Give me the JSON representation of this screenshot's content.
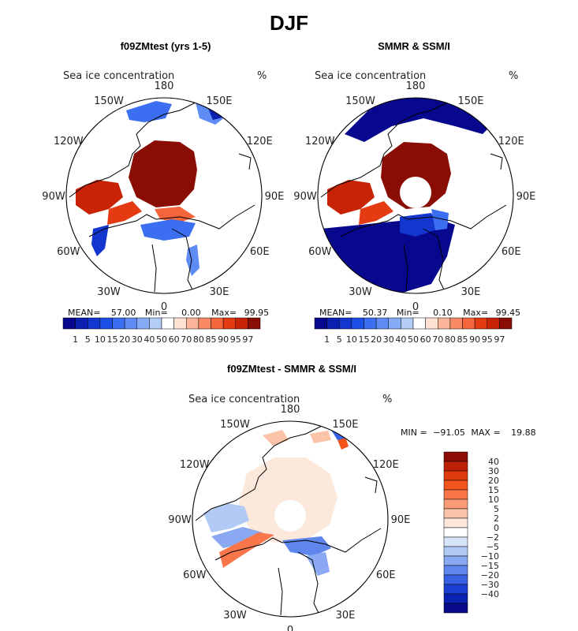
{
  "title": "DJF",
  "chart_data": [
    {
      "type": "heatmap",
      "title": "f09ZMtest (yrs 1-5)",
      "subtitle": "Sea ice concentration",
      "units": "%",
      "lon_labels": [
        "180",
        "150E",
        "120E",
        "90E",
        "60E",
        "30E",
        "0",
        "30W",
        "60W",
        "90W",
        "120W",
        "150W"
      ],
      "stats": {
        "mean_label": "MEAN=",
        "mean": "57.00",
        "min_label": "Min=",
        "min": "0.00",
        "max_label": "Max=",
        "max": "99.95"
      },
      "colorbar_levels": [
        "1",
        "5",
        "10",
        "15",
        "20",
        "30",
        "40",
        "50",
        "60",
        "70",
        "80",
        "85",
        "90",
        "95",
        "97"
      ]
    },
    {
      "type": "heatmap",
      "title": "SMMR & SSM/I",
      "subtitle": "Sea ice concentration",
      "units": "%",
      "lon_labels": [
        "180",
        "150E",
        "120E",
        "90E",
        "60E",
        "30E",
        "0",
        "30W",
        "60W",
        "90W",
        "120W",
        "150W"
      ],
      "stats": {
        "mean_label": "MEAN=",
        "mean": "50.37",
        "min_label": "Min=",
        "min": "0.10",
        "max_label": "Max=",
        "max": "99.45"
      },
      "colorbar_levels": [
        "1",
        "5",
        "10",
        "15",
        "20",
        "30",
        "40",
        "50",
        "60",
        "70",
        "80",
        "85",
        "90",
        "95",
        "97"
      ]
    },
    {
      "type": "heatmap",
      "title": "f09ZMtest - SMMR & SSM/I",
      "subtitle": "Sea ice concentration",
      "units": "%",
      "lon_labels": [
        "180",
        "150E",
        "120E",
        "90E",
        "60E",
        "30E",
        "0",
        "30W",
        "60W",
        "90W",
        "120W",
        "150W"
      ],
      "stats": {
        "min_label": "MIN =",
        "min": "−91.05",
        "max_label": "MAX =",
        "max": "19.88"
      },
      "colorbar_levels": [
        "40",
        "30",
        "20",
        "15",
        "10",
        "5",
        "2",
        "0",
        "−2",
        "−5",
        "−10",
        "−15",
        "−20",
        "−30",
        "−40"
      ]
    }
  ],
  "colors": {
    "abs_scale": [
      "#08088f",
      "#0b1fb0",
      "#1336cf",
      "#1d4fe6",
      "#3b6ef0",
      "#5f8cf4",
      "#86aaf6",
      "#b4cdf8",
      "#ffffff",
      "#fde1d3",
      "#fbb598",
      "#f98a64",
      "#f5643a",
      "#e53b13",
      "#c82305",
      "#8a0d03"
    ],
    "diff_scale": [
      "#8b0d03",
      "#bd2004",
      "#de3a0d",
      "#f3561c",
      "#f8764a",
      "#fa9a76",
      "#fbc3a8",
      "#fde8dc",
      "#ffffff",
      "#d7e5fa",
      "#b1caf6",
      "#8aa9f2",
      "#5f86ec",
      "#3761e2",
      "#1a3fd1",
      "#0a22b1",
      "#080a8a"
    ]
  }
}
